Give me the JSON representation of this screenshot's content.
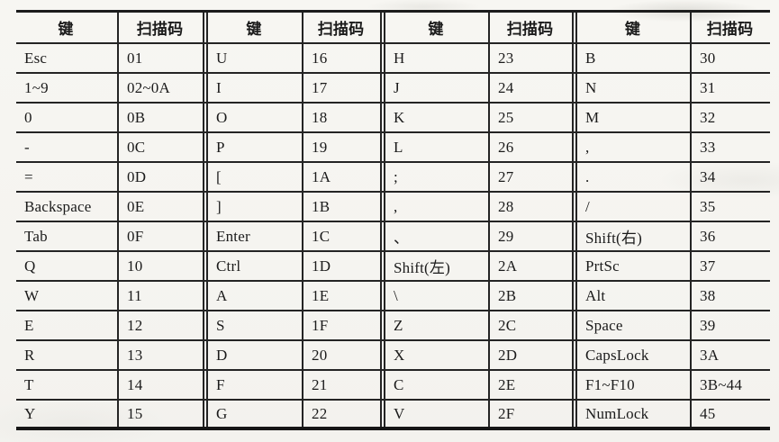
{
  "page": {
    "background_color": "#f6f5f1",
    "border_color": "#242424",
    "text_color": "#1b1b1b"
  },
  "table": {
    "header": {
      "key_label": "键",
      "code_label": "扫描码"
    },
    "sections": [
      {
        "rows": [
          {
            "key": "Esc",
            "code": "01"
          },
          {
            "key": "1~9",
            "code": "02~0A"
          },
          {
            "key": "0",
            "code": "0B"
          },
          {
            "key": "-",
            "code": "0C"
          },
          {
            "key": "=",
            "code": "0D"
          },
          {
            "key": "Backspace",
            "code": "0E"
          },
          {
            "key": "Tab",
            "code": "0F"
          },
          {
            "key": "Q",
            "code": "10"
          },
          {
            "key": "W",
            "code": "11"
          },
          {
            "key": "E",
            "code": "12"
          },
          {
            "key": "R",
            "code": "13"
          },
          {
            "key": "T",
            "code": "14"
          },
          {
            "key": "Y",
            "code": "15"
          }
        ]
      },
      {
        "rows": [
          {
            "key": "U",
            "code": "16"
          },
          {
            "key": "I",
            "code": "17"
          },
          {
            "key": "O",
            "code": "18"
          },
          {
            "key": "P",
            "code": "19"
          },
          {
            "key": "[",
            "code": "1A"
          },
          {
            "key": "]",
            "code": "1B"
          },
          {
            "key": "Enter",
            "code": "1C"
          },
          {
            "key": "Ctrl",
            "code": "1D"
          },
          {
            "key": "A",
            "code": "1E"
          },
          {
            "key": "S",
            "code": "1F"
          },
          {
            "key": "D",
            "code": "20"
          },
          {
            "key": "F",
            "code": "21"
          },
          {
            "key": "G",
            "code": "22"
          }
        ]
      },
      {
        "rows": [
          {
            "key": "H",
            "code": "23"
          },
          {
            "key": "J",
            "code": "24"
          },
          {
            "key": "K",
            "code": "25"
          },
          {
            "key": "L",
            "code": "26"
          },
          {
            "key": ";",
            "code": "27"
          },
          {
            "key": ",",
            "code": "28"
          },
          {
            "key": "、",
            "code": "29"
          },
          {
            "key": "Shift(左)",
            "code": "2A"
          },
          {
            "key": "\\",
            "code": "2B"
          },
          {
            "key": "Z",
            "code": "2C"
          },
          {
            "key": "X",
            "code": "2D"
          },
          {
            "key": "C",
            "code": "2E"
          },
          {
            "key": "V",
            "code": "2F"
          }
        ]
      },
      {
        "rows": [
          {
            "key": "B",
            "code": "30"
          },
          {
            "key": "N",
            "code": "31"
          },
          {
            "key": "M",
            "code": "32"
          },
          {
            "key": ",",
            "code": "33"
          },
          {
            "key": ".",
            "code": "34"
          },
          {
            "key": "/",
            "code": "35"
          },
          {
            "key": "Shift(右)",
            "code": "36"
          },
          {
            "key": "PrtSc",
            "code": "37"
          },
          {
            "key": "Alt",
            "code": "38"
          },
          {
            "key": "Space",
            "code": "39"
          },
          {
            "key": "CapsLock",
            "code": "3A"
          },
          {
            "key": "F1~F10",
            "code": "3B~44"
          },
          {
            "key": "NumLock",
            "code": "45"
          }
        ]
      }
    ]
  }
}
